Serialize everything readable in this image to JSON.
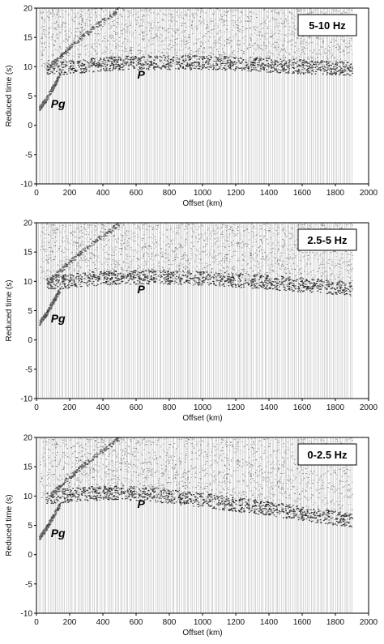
{
  "chart_data": [
    {
      "type": "scatter",
      "band_label": "5-10 Hz",
      "xlabel": "Offset (km)",
      "ylabel": "Reduced time (s)",
      "xlim": [
        0,
        2000
      ],
      "ylim": [
        -10,
        20
      ],
      "xticks": [
        "0",
        "200",
        "400",
        "600",
        "800",
        "1000",
        "1200",
        "1400",
        "1600",
        "1800",
        "2000"
      ],
      "yticks": [
        "20",
        "15",
        "10",
        "5",
        "0",
        "-5",
        "-10"
      ],
      "phase_labels": [
        {
          "text": "Pg",
          "x": 130,
          "y": 3
        },
        {
          "text": "P",
          "x": 630,
          "y": 8
        }
      ],
      "series": [
        {
          "name": "Pg",
          "x": [
            20,
            60,
            100,
            140
          ],
          "y": [
            3,
            4.5,
            6.5,
            8.5
          ]
        },
        {
          "name": "P",
          "x": [
            80,
            150,
            300,
            500,
            700,
            900,
            1100,
            1300,
            1500,
            1700,
            1900
          ],
          "y": [
            9.5,
            9.4,
            9.8,
            10.2,
            10.3,
            10.3,
            10.2,
            10.0,
            9.7,
            9.5,
            9.3
          ]
        },
        {
          "x": [
            60,
            150,
            250,
            350,
            450,
            500
          ],
          "y": [
            9.5,
            12,
            14.5,
            16.8,
            18.8,
            20
          ]
        }
      ],
      "data_extent_km": 1900
    },
    {
      "type": "scatter",
      "band_label": "2.5-5 Hz",
      "xlabel": "Offset (km)",
      "ylabel": "Reduced time (s)",
      "xlim": [
        0,
        2000
      ],
      "ylim": [
        -10,
        20
      ],
      "xticks": [
        "0",
        "200",
        "400",
        "600",
        "800",
        "1000",
        "1200",
        "1400",
        "1600",
        "1800",
        "2000"
      ],
      "yticks": [
        "20",
        "15",
        "10",
        "5",
        "0",
        "-5",
        "-10"
      ],
      "phase_labels": [
        {
          "text": "Pg",
          "x": 130,
          "y": 3
        },
        {
          "text": "P",
          "x": 630,
          "y": 8
        }
      ],
      "series": [
        {
          "name": "Pg",
          "x": [
            20,
            60,
            100,
            140
          ],
          "y": [
            3,
            4.5,
            6.5,
            8.5
          ]
        },
        {
          "name": "P",
          "x": [
            80,
            150,
            300,
            500,
            700,
            900,
            1100,
            1300,
            1500,
            1700,
            1900
          ],
          "y": [
            9.5,
            9.5,
            10.0,
            10.3,
            10.3,
            10.2,
            10.0,
            9.6,
            9.2,
            8.8,
            8.3
          ]
        },
        {
          "x": [
            60,
            150,
            250,
            350,
            450,
            500
          ],
          "y": [
            9.5,
            12,
            14.5,
            16.8,
            18.8,
            20
          ]
        }
      ],
      "data_extent_km": 1900
    },
    {
      "type": "scatter",
      "band_label": "0-2.5 Hz",
      "xlabel": "Offset (km)",
      "ylabel": "Reduced time (s)",
      "xlim": [
        0,
        2000
      ],
      "ylim": [
        -10,
        20
      ],
      "xticks": [
        "0",
        "200",
        "400",
        "600",
        "800",
        "1000",
        "1200",
        "1400",
        "1600",
        "1800",
        "2000"
      ],
      "yticks": [
        "20",
        "15",
        "10",
        "5",
        "0",
        "-5",
        "-10"
      ],
      "phase_labels": [
        {
          "text": "Pg",
          "x": 130,
          "y": 3
        },
        {
          "text": "P",
          "x": 630,
          "y": 8
        }
      ],
      "series": [
        {
          "name": "Pg",
          "x": [
            20,
            60,
            100,
            140
          ],
          "y": [
            3,
            4.5,
            6.5,
            8.5
          ]
        },
        {
          "name": "P",
          "x": [
            80,
            150,
            300,
            500,
            700,
            900,
            1100,
            1300,
            1500,
            1700,
            1900
          ],
          "y": [
            9.5,
            9.6,
            10.0,
            10.2,
            9.8,
            9.2,
            8.5,
            7.8,
            7.0,
            6.2,
            5.4
          ]
        },
        {
          "x": [
            60,
            150,
            250,
            350,
            450,
            500
          ],
          "y": [
            9.5,
            12,
            14.5,
            16.8,
            18.8,
            20
          ]
        }
      ],
      "data_extent_km": 1900
    }
  ]
}
